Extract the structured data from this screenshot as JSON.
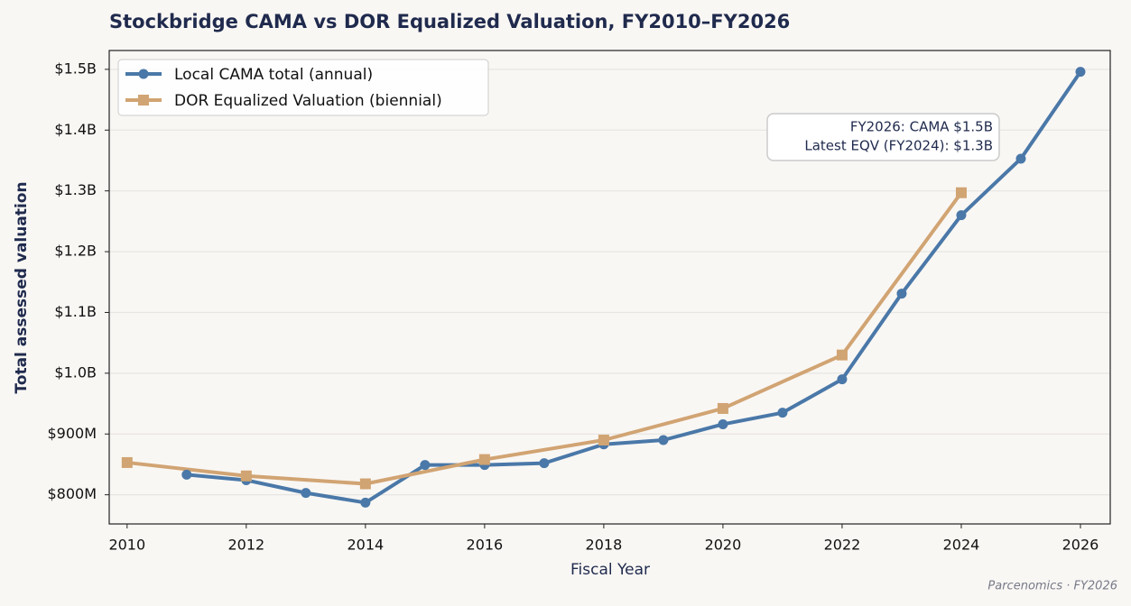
{
  "chart_data": {
    "type": "line",
    "title": "Stockbridge CAMA vs DOR Equalized Valuation, FY2010–FY2026",
    "xlabel": "Fiscal Year",
    "ylabel": "Total assessed valuation",
    "xlim": [
      2009.7,
      2026.5
    ],
    "xticks": [
      2010,
      2012,
      2014,
      2016,
      2018,
      2020,
      2022,
      2024,
      2026
    ],
    "ylim": [
      752,
      1531
    ],
    "yticks": [
      {
        "value": 800,
        "label": "$800M"
      },
      {
        "value": 900,
        "label": "$900M"
      },
      {
        "value": 1000,
        "label": "$1.0B"
      },
      {
        "value": 1100,
        "label": "$1.1B"
      },
      {
        "value": 1200,
        "label": "$1.2B"
      },
      {
        "value": 1300,
        "label": "$1.3B"
      },
      {
        "value": 1400,
        "label": "$1.4B"
      },
      {
        "value": 1500,
        "label": "$1.5B"
      }
    ],
    "grid": true,
    "legend": "upper left",
    "series": [
      {
        "name": "Local CAMA total (annual)",
        "color": "#4a78a8",
        "marker": "circle",
        "x": [
          2011,
          2012,
          2013,
          2014,
          2015,
          2016,
          2017,
          2018,
          2019,
          2020,
          2021,
          2022,
          2023,
          2024,
          2025,
          2026
        ],
        "values": [
          833,
          824,
          803,
          787,
          849,
          849,
          852,
          883,
          890,
          916,
          935,
          990,
          1131,
          1260,
          1353,
          1496
        ]
      },
      {
        "name": "DOR Equalized Valuation (biennial)",
        "color": "#d1a473",
        "marker": "square",
        "x": [
          2010,
          2012,
          2014,
          2016,
          2018,
          2020,
          2022,
          2024
        ],
        "values": [
          853,
          831,
          818,
          858,
          890,
          942,
          1030,
          1297
        ]
      }
    ],
    "annotation": [
      "FY2026: CAMA $1.5B",
      "Latest EQV (FY2024): $1.3B"
    ],
    "footer": "Parcenomics · FY2026"
  }
}
